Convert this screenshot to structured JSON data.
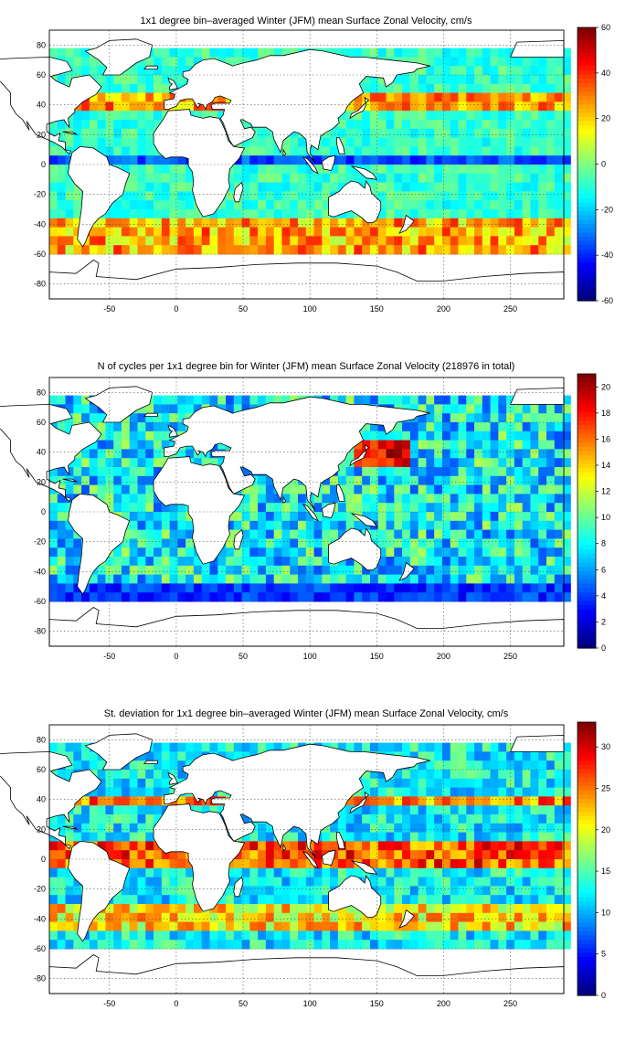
{
  "chart_data": [
    {
      "type": "heatmap",
      "title": "1x1 degree bin–averaged Winter (JFM) mean Surface Zonal Velocity, cm/s",
      "xlim": [
        -95,
        290
      ],
      "ylim": [
        -90,
        90
      ],
      "x_ticks": [
        -50,
        0,
        50,
        100,
        150,
        200,
        250
      ],
      "y_ticks": [
        80,
        60,
        40,
        20,
        0,
        -20,
        -40,
        -60,
        -80
      ],
      "grid": true,
      "colormap": "jet",
      "colorbar": {
        "range": [
          -60,
          60
        ],
        "ticks": [
          60,
          40,
          20,
          0,
          -20,
          -40,
          -60
        ]
      },
      "features": "eastward (positive) jets in Gulf Stream, Kuroshio and Antarctic Circumpolar Current; westward (negative) equatorial currents"
    },
    {
      "type": "heatmap",
      "title": "N of cycles per 1x1 degree bin for Winter (JFM) mean Surface Zonal Velocity (218976 in total)",
      "xlim": [
        -95,
        290
      ],
      "ylim": [
        -90,
        90
      ],
      "x_ticks": [
        -50,
        0,
        50,
        100,
        150,
        200,
        250
      ],
      "y_ticks": [
        80,
        60,
        40,
        20,
        0,
        -20,
        -40,
        -60,
        -80
      ],
      "grid": true,
      "colormap": "jet",
      "colorbar": {
        "range": [
          0,
          21
        ],
        "ticks": [
          20,
          18,
          16,
          14,
          12,
          10,
          8,
          6,
          4,
          2,
          0
        ]
      },
      "total": 218976
    },
    {
      "type": "heatmap",
      "title": "St. deviation for 1x1 degree bin–averaged Winter (JFM) mean Surface Zonal Velocity, cm/s",
      "xlim": [
        -95,
        290
      ],
      "ylim": [
        -90,
        90
      ],
      "x_ticks": [
        -50,
        0,
        50,
        100,
        150,
        200,
        250
      ],
      "y_ticks": [
        80,
        60,
        40,
        20,
        0,
        -20,
        -40,
        -60,
        -80
      ],
      "grid": true,
      "colormap": "jet",
      "colorbar": {
        "range": [
          0,
          33
        ],
        "ticks": [
          30,
          25,
          20,
          15,
          10,
          5,
          0
        ]
      }
    }
  ]
}
